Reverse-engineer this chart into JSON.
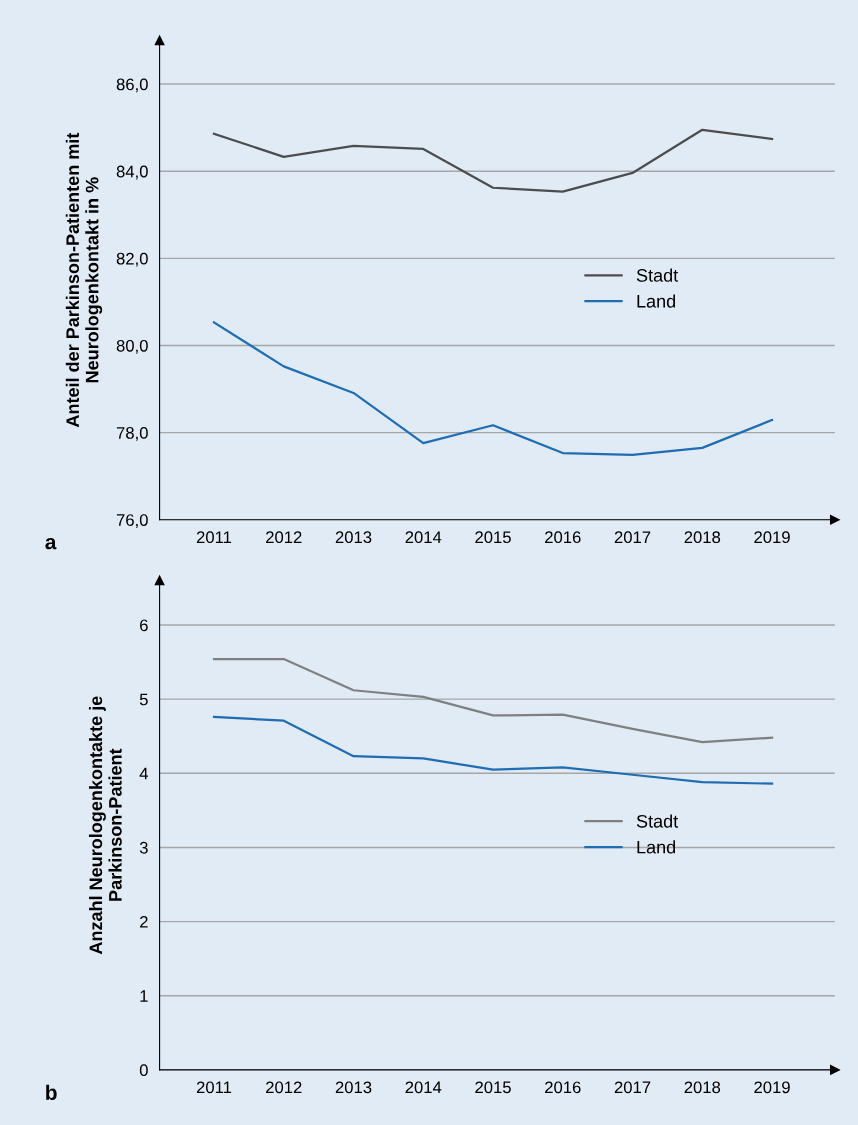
{
  "chart_data": [
    {
      "type": "line",
      "categories": [
        "2011",
        "2012",
        "2013",
        "2014",
        "2015",
        "2016",
        "2017",
        "2018",
        "2019"
      ],
      "ylabel": "Anteil der Parkinson-Patienten mit\nNeurologenkontakt in %",
      "series": [
        {
          "name": "Stadt",
          "color": "#4d4d4d",
          "values": [
            84.86,
            84.33,
            84.58,
            84.51,
            83.62,
            83.53,
            83.96,
            84.95,
            84.74
          ]
        },
        {
          "name": "Land",
          "color": "#1f6db3",
          "values": [
            80.53,
            79.52,
            78.91,
            77.76,
            78.17,
            77.53,
            77.49,
            77.65,
            78.29
          ]
        }
      ],
      "ylim": [
        76,
        87
      ],
      "yticks": [
        {
          "value": 76,
          "label": "76,0"
        },
        {
          "value": 78,
          "label": "78,0"
        },
        {
          "value": 80,
          "label": "80,0"
        },
        {
          "value": 82,
          "label": "82,0"
        },
        {
          "value": 84,
          "label": "84,0"
        },
        {
          "value": 86,
          "label": "86,0"
        }
      ],
      "grid": "y",
      "legend": "center right",
      "annotations": [
        "a"
      ]
    },
    {
      "type": "line",
      "categories": [
        "2011",
        "2012",
        "2013",
        "2014",
        "2015",
        "2016",
        "2017",
        "2018",
        "2019"
      ],
      "ylabel": "Anzahl Neurologenkontakte je\nParkinson-Patient",
      "series": [
        {
          "name": "Stadt",
          "color": "#808080",
          "values": [
            5.54,
            5.54,
            5.12,
            5.03,
            4.78,
            4.79,
            4.6,
            4.42,
            4.48
          ]
        },
        {
          "name": "Land",
          "color": "#1f6db3",
          "values": [
            4.76,
            4.71,
            4.23,
            4.2,
            4.05,
            4.08,
            3.98,
            3.88,
            3.86
          ]
        }
      ],
      "ylim": [
        0,
        6.6
      ],
      "yticks": [
        0,
        1,
        2,
        3,
        4,
        5,
        6
      ],
      "grid": "y",
      "legend": "center right",
      "annotations": [
        "b"
      ]
    }
  ]
}
